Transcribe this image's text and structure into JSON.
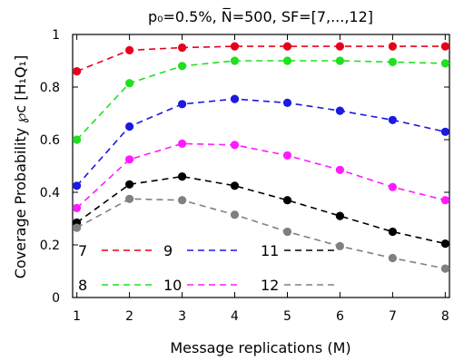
{
  "chart_data": {
    "type": "line",
    "title": "p₀=0.5%, N̅=500, SF=[7,...,12]",
    "xlabel": "Message replications (M)",
    "ylabel": "Coverage Probability ℘c [H₁Q₁]",
    "x": [
      1,
      2,
      3,
      4,
      5,
      6,
      7,
      8
    ],
    "xlim": [
      1,
      8
    ],
    "ylim": [
      0,
      1
    ],
    "xticks": [
      "1",
      "2",
      "3",
      "4",
      "5",
      "6",
      "7",
      "8"
    ],
    "yticks": [
      "0",
      "0.2",
      "0.4",
      "0.6",
      "0.8",
      "1"
    ],
    "grid": false,
    "legend_placement": "inside-bottom",
    "series": [
      {
        "name": "7",
        "color": "#e8001a",
        "values": [
          0.86,
          0.94,
          0.95,
          0.955,
          0.955,
          0.955,
          0.955,
          0.955
        ]
      },
      {
        "name": "8",
        "color": "#1fe01f",
        "values": [
          0.6,
          0.815,
          0.88,
          0.9,
          0.9,
          0.9,
          0.895,
          0.89
        ]
      },
      {
        "name": "9",
        "color": "#1a1ae0",
        "values": [
          0.425,
          0.65,
          0.735,
          0.755,
          0.74,
          0.71,
          0.675,
          0.63
        ]
      },
      {
        "name": "10",
        "color": "#ff1aff",
        "values": [
          0.34,
          0.525,
          0.585,
          0.58,
          0.54,
          0.485,
          0.42,
          0.37
        ]
      },
      {
        "name": "11",
        "color": "#000000",
        "values": [
          0.285,
          0.43,
          0.46,
          0.425,
          0.37,
          0.31,
          0.25,
          0.205
        ]
      },
      {
        "name": "12",
        "color": "#808080",
        "values": [
          0.265,
          0.375,
          0.37,
          0.315,
          0.25,
          0.195,
          0.15,
          0.11
        ]
      }
    ]
  }
}
